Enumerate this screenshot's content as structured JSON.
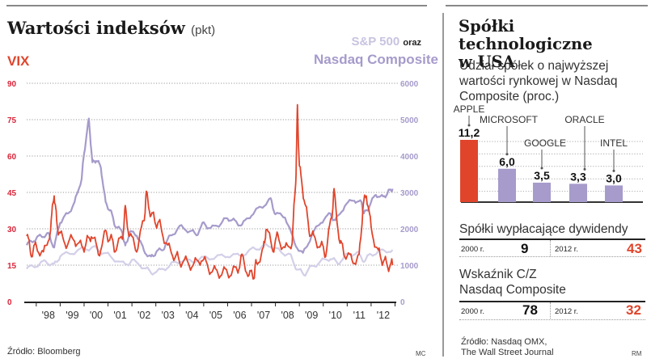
{
  "left_panel": {
    "title": "Wartości indeksów",
    "unit": "(pkt)",
    "vix_label": "VIX",
    "sp_label": "S&P 500",
    "conjunction": "oraz",
    "nasdaq_label": "Nasdaq Composite",
    "source": "Źródło: Bloomberg",
    "initials": "MC"
  },
  "chart_data": [
    {
      "type": "line",
      "title": "Wartości indeksów (pkt)",
      "x_tick_labels": [
        "'98",
        "'99",
        "'00",
        "'01",
        "'02",
        "'03",
        "'04",
        "'05",
        "'06",
        "'07",
        "'08",
        "'09",
        "'10",
        "'11",
        "'12"
      ],
      "xlim": [
        1997.6,
        2012.95
      ],
      "left_axis": {
        "label": "VIX",
        "ticks": [
          0,
          15,
          30,
          45,
          60,
          75,
          90
        ],
        "ylim": [
          0,
          90
        ]
      },
      "right_axis": {
        "label": "S&P 500 oraz Nasdaq Composite",
        "ticks": [
          0,
          1000,
          2000,
          3000,
          4000,
          5000,
          6000
        ],
        "ylim": [
          0,
          6000
        ]
      },
      "grid": true,
      "series": [
        {
          "name": "VIX",
          "axis": "left",
          "color": "#e0452c",
          "x": [
            1997.6,
            1997.8,
            1998.0,
            1998.3,
            1998.6,
            1998.75,
            1998.85,
            1999.0,
            1999.3,
            1999.6,
            1999.9,
            2000.1,
            2000.3,
            2000.6,
            2000.9,
            2001.1,
            2001.3,
            2001.6,
            2001.72,
            2001.9,
            2002.2,
            2002.5,
            2002.6,
            2002.8,
            2003.0,
            2003.2,
            2003.5,
            2003.8,
            2004.0,
            2004.3,
            2004.6,
            2004.9,
            2005.2,
            2005.5,
            2005.8,
            2006.1,
            2006.4,
            2006.6,
            2006.9,
            2007.1,
            2007.2,
            2007.5,
            2007.6,
            2007.9,
            2008.1,
            2008.4,
            2008.7,
            2008.85,
            2008.92,
            2009.0,
            2009.2,
            2009.4,
            2009.6,
            2009.9,
            2010.1,
            2010.35,
            2010.45,
            2010.7,
            2010.9,
            2011.2,
            2011.5,
            2011.65,
            2011.8,
            2012.0,
            2012.3,
            2012.5,
            2012.7,
            2012.9
          ],
          "y": [
            27,
            20,
            23,
            19,
            30,
            45,
            33,
            27,
            24,
            26,
            22,
            24,
            28,
            20,
            28,
            26,
            22,
            26,
            38,
            27,
            22,
            33,
            44,
            36,
            33,
            31,
            22,
            19,
            17,
            16,
            15,
            18,
            14,
            12,
            12,
            12,
            13,
            18,
            11,
            11,
            16,
            21,
            30,
            22,
            27,
            21,
            25,
            50,
            80,
            55,
            43,
            30,
            26,
            23,
            20,
            35,
            45,
            24,
            20,
            17,
            18,
            38,
            45,
            30,
            20,
            17,
            15,
            15
          ]
        },
        {
          "name": "Nasdaq Composite",
          "axis": "right",
          "color": "#a69bcb",
          "x": [
            1997.6,
            1997.9,
            1998.2,
            1998.5,
            1998.75,
            1999.0,
            1999.3,
            1999.6,
            1999.9,
            2000.0,
            2000.2,
            2000.35,
            2000.5,
            2000.7,
            2000.9,
            2001.1,
            2001.3,
            2001.6,
            2001.72,
            2001.9,
            2002.2,
            2002.5,
            2002.8,
            2003.0,
            2003.3,
            2003.6,
            2004.0,
            2004.4,
            2004.7,
            2005.0,
            2005.3,
            2005.7,
            2006.0,
            2006.3,
            2006.6,
            2007.0,
            2007.4,
            2007.8,
            2008.0,
            2008.4,
            2008.8,
            2009.15,
            2009.5,
            2009.9,
            2010.3,
            2010.5,
            2010.9,
            2011.3,
            2011.6,
            2011.7,
            2011.9,
            2012.2,
            2012.5,
            2012.7,
            2012.9
          ],
          "y": [
            1550,
            1700,
            1800,
            1850,
            1500,
            2200,
            2400,
            2700,
            3400,
            4100,
            5000,
            3800,
            3900,
            3700,
            2700,
            2500,
            2100,
            1900,
            1500,
            1900,
            1850,
            1400,
            1200,
            1350,
            1450,
            1800,
            2050,
            1950,
            1850,
            2150,
            2000,
            2150,
            2300,
            2200,
            2100,
            2400,
            2600,
            2800,
            2400,
            2350,
            1600,
            1300,
            1800,
            2200,
            2400,
            2200,
            2650,
            2800,
            2700,
            2400,
            2600,
            2950,
            2850,
            3000,
            3100
          ]
        },
        {
          "name": "S&P 500",
          "axis": "right",
          "color": "#d3cfe8",
          "x": [
            1997.6,
            1998.0,
            1998.4,
            1998.75,
            1999.0,
            1999.5,
            2000.0,
            2000.4,
            2000.8,
            2001.2,
            2001.72,
            2002.0,
            2002.5,
            2002.8,
            2003.2,
            2003.6,
            2004.0,
            2004.5,
            2005.0,
            2005.5,
            2006.0,
            2006.5,
            2007.0,
            2007.4,
            2007.8,
            2008.2,
            2008.6,
            2008.9,
            2009.2,
            2009.5,
            2009.9,
            2010.3,
            2010.6,
            2011.0,
            2011.4,
            2011.7,
            2012.0,
            2012.4,
            2012.9
          ],
          "y": [
            900,
            1000,
            1100,
            1000,
            1250,
            1350,
            1450,
            1480,
            1350,
            1200,
            1000,
            1120,
            950,
            800,
            850,
            1000,
            1130,
            1110,
            1190,
            1220,
            1270,
            1260,
            1420,
            1500,
            1540,
            1370,
            1280,
            900,
            750,
            950,
            1100,
            1200,
            1060,
            1280,
            1340,
            1130,
            1300,
            1380,
            1420
          ]
        }
      ]
    },
    {
      "type": "bar",
      "title": "Udział spółek o najwyższej wartości rynkowej w Nasdaq Composite (proc.)",
      "categories": [
        "APPLE",
        "MICROSOFT",
        "GOOGLE",
        "ORACLE",
        "INTEL"
      ],
      "values": [
        11.2,
        6.0,
        3.5,
        3.3,
        3.0
      ],
      "value_labels": [
        "11,2",
        "6,0",
        "3,5",
        "3,3",
        "3,0"
      ],
      "colors": [
        "#e0452c",
        "#a69bcb",
        "#a69bcb",
        "#a69bcb",
        "#a69bcb"
      ],
      "ylim": [
        0,
        12
      ],
      "grid": true
    }
  ],
  "right_panel": {
    "title_line1": "Spółki technologiczne",
    "title_line2": "w USA",
    "subtitle": "Udział spółek o najwyższej wartości rynkowej w Nasdaq Composite (proc.)",
    "dividends": {
      "title": "Spółki wypłacające dywidendy",
      "year1": "2000 r.",
      "value1": "9",
      "year2": "2012 r.",
      "value2": "43"
    },
    "pe": {
      "title_line1": "Wskaźnik C/Z",
      "title_line2": "Nasdaq Composite",
      "year1": "2000 r.",
      "value1": "78",
      "year2": "2012 r.",
      "value2": "32"
    },
    "source_line1": "Źródło: Nasdaq OMX,",
    "source_line2": "The Wall Street Journal",
    "initials": "RM"
  },
  "colors": {
    "vix": "#e0452c",
    "nasdaq": "#a69bcb",
    "sp500": "#d3cfe8",
    "highlight": "#e0452c"
  }
}
